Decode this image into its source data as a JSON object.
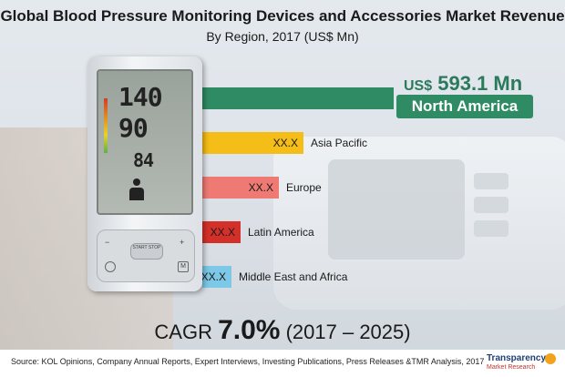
{
  "title": "Global Blood Pressure Monitoring Devices and Accessories Market Revenue",
  "subtitle": "By Region, 2017 (US$ Mn)",
  "highlight": {
    "currency": "US$",
    "value_text": "593.1 Mn",
    "region": "North America",
    "color": "#2e8b63"
  },
  "chart_data": {
    "type": "bar",
    "orientation": "horizontal",
    "title": "Global Blood Pressure Monitoring Devices and Accessories Market Revenue",
    "subtitle": "By Region, 2017 (US$ Mn)",
    "unit": "US$ Mn",
    "categories": [
      "North America",
      "Asia Pacific",
      "Europe",
      "Latin America",
      "Middle East and Africa"
    ],
    "values": [
      593.1,
      null,
      null,
      null,
      null
    ],
    "value_labels": [
      "US$ 593.1 Mn",
      "XX.X",
      "XX.X",
      "XX.X",
      "XX.X"
    ],
    "relative_lengths": [
      1.0,
      0.53,
      0.4,
      0.2,
      0.15
    ],
    "colors": [
      "#2e8b63",
      "#f5bd17",
      "#ef7a74",
      "#d4302a",
      "#7cc8e6"
    ],
    "grid": false,
    "legend": "none"
  },
  "device_display": {
    "sys": "140",
    "dia": "90",
    "pulse": "84",
    "start_label": "START STOP"
  },
  "cagr": {
    "prefix": "CAGR",
    "value": "7.0%",
    "period": "(2017 – 2025)"
  },
  "source": "Source: KOL Opinions, Company Annual Reports, Expert Interviews, Investing Publications, Press Releases &TMR Analysis,  2017",
  "logo": {
    "line1": "Transparency",
    "line2": "Market Research"
  }
}
